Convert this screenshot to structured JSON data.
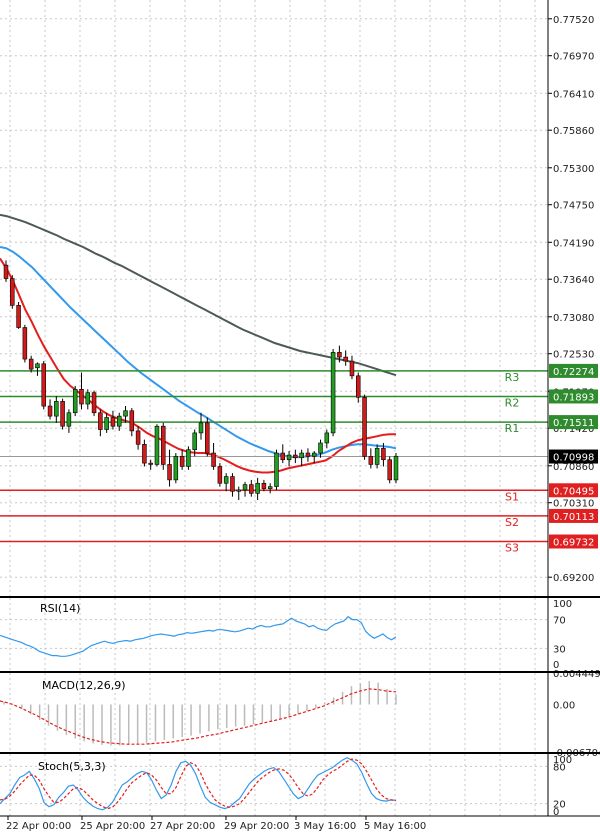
{
  "chart_data": {
    "type": "candlestick",
    "price_panel": {
      "ylim": [
        0.6892,
        0.778
      ],
      "y_ticks": [
        "0.77520",
        "0.76970",
        "0.76410",
        "0.75860",
        "0.75300",
        "0.74750",
        "0.74190",
        "0.73640",
        "0.73080",
        "0.72530",
        "0.71970",
        "0.71420",
        "0.70860",
        "0.70310",
        "0.69200"
      ],
      "current_price": "0.70998",
      "levels": [
        {
          "name": "R3",
          "value": 0.72274,
          "label": "0.72274",
          "color": "#2e8b2e"
        },
        {
          "name": "R2",
          "value": 0.71893,
          "label": "0.71893",
          "color": "#2e8b2e"
        },
        {
          "name": "R1",
          "value": 0.71511,
          "label": "0.71511",
          "color": "#2e8b2e"
        },
        {
          "name": "S1",
          "value": 0.70495,
          "label": "0.70495",
          "color": "#e02020"
        },
        {
          "name": "S2",
          "value": 0.70113,
          "label": "0.70113",
          "color": "#e02020"
        },
        {
          "name": "S3",
          "value": 0.69732,
          "label": "0.69732",
          "color": "#e02020"
        }
      ],
      "candles": [
        [
          0.7385,
          0.7392,
          0.736,
          0.7365
        ],
        [
          0.7365,
          0.737,
          0.732,
          0.7325
        ],
        [
          0.7325,
          0.733,
          0.729,
          0.7292
        ],
        [
          0.7292,
          0.7296,
          0.724,
          0.7245
        ],
        [
          0.7245,
          0.725,
          0.7225,
          0.723
        ],
        [
          0.7232,
          0.724,
          0.722,
          0.7238
        ],
        [
          0.7238,
          0.7242,
          0.717,
          0.7175
        ],
        [
          0.7175,
          0.7185,
          0.7155,
          0.716
        ],
        [
          0.716,
          0.719,
          0.715,
          0.7182
        ],
        [
          0.7182,
          0.7186,
          0.714,
          0.7145
        ],
        [
          0.7145,
          0.717,
          0.7135,
          0.7165
        ],
        [
          0.7165,
          0.7205,
          0.716,
          0.72
        ],
        [
          0.72,
          0.7225,
          0.717,
          0.7178
        ],
        [
          0.7178,
          0.72,
          0.717,
          0.7195
        ],
        [
          0.7195,
          0.7198,
          0.716,
          0.7165
        ],
        [
          0.7165,
          0.717,
          0.713,
          0.714
        ],
        [
          0.714,
          0.7165,
          0.7135,
          0.7158
        ],
        [
          0.7158,
          0.7168,
          0.714,
          0.7145
        ],
        [
          0.7145,
          0.7165,
          0.7138,
          0.716
        ],
        [
          0.716,
          0.7175,
          0.715,
          0.7168
        ],
        [
          0.7168,
          0.7172,
          0.713,
          0.7138
        ],
        [
          0.7138,
          0.7145,
          0.711,
          0.7118
        ],
        [
          0.7118,
          0.7125,
          0.7085,
          0.709
        ],
        [
          0.709,
          0.7095,
          0.708,
          0.7088
        ],
        [
          0.7088,
          0.7148,
          0.7085,
          0.7145
        ],
        [
          0.7145,
          0.715,
          0.708,
          0.7088
        ],
        [
          0.7088,
          0.711,
          0.7055,
          0.7065
        ],
        [
          0.7065,
          0.7105,
          0.706,
          0.71
        ],
        [
          0.71,
          0.711,
          0.708,
          0.7085
        ],
        [
          0.7085,
          0.7115,
          0.708,
          0.711
        ],
        [
          0.711,
          0.714,
          0.71,
          0.7135
        ],
        [
          0.7135,
          0.7165,
          0.7125,
          0.715
        ],
        [
          0.715,
          0.7158,
          0.71,
          0.7105
        ],
        [
          0.7105,
          0.712,
          0.708,
          0.7085
        ],
        [
          0.7085,
          0.709,
          0.7055,
          0.706
        ],
        [
          0.706,
          0.7075,
          0.7048,
          0.707
        ],
        [
          0.707,
          0.7075,
          0.704,
          0.7048
        ],
        [
          0.7048,
          0.7055,
          0.7035,
          0.705
        ],
        [
          0.705,
          0.7062,
          0.704,
          0.7058
        ],
        [
          0.7058,
          0.7065,
          0.704,
          0.7045
        ],
        [
          0.7045,
          0.7068,
          0.7035,
          0.706
        ],
        [
          0.706,
          0.7065,
          0.7048,
          0.7052
        ],
        [
          0.7052,
          0.706,
          0.7045,
          0.7055
        ],
        [
          0.7055,
          0.711,
          0.705,
          0.7105
        ],
        [
          0.7105,
          0.7118,
          0.709,
          0.7095
        ],
        [
          0.7095,
          0.7108,
          0.7085,
          0.7102
        ],
        [
          0.7102,
          0.711,
          0.709,
          0.7098
        ],
        [
          0.7098,
          0.711,
          0.7085,
          0.7105
        ],
        [
          0.7105,
          0.7112,
          0.7092,
          0.71
        ],
        [
          0.71,
          0.7108,
          0.709,
          0.7105
        ],
        [
          0.7105,
          0.7125,
          0.7098,
          0.712
        ],
        [
          0.712,
          0.714,
          0.7112,
          0.7135
        ],
        [
          0.7135,
          0.726,
          0.713,
          0.7255
        ],
        [
          0.7255,
          0.7265,
          0.724,
          0.7248
        ],
        [
          0.7248,
          0.7258,
          0.7235,
          0.7242
        ],
        [
          0.7242,
          0.725,
          0.7215,
          0.722
        ],
        [
          0.722,
          0.7225,
          0.718,
          0.7188
        ],
        [
          0.7188,
          0.7192,
          0.7095,
          0.71
        ],
        [
          0.71,
          0.7112,
          0.7082,
          0.7088
        ],
        [
          0.7088,
          0.7118,
          0.7082,
          0.7112
        ],
        [
          0.7112,
          0.712,
          0.7085,
          0.7095
        ],
        [
          0.7095,
          0.71,
          0.706,
          0.7065
        ],
        [
          0.7065,
          0.7105,
          0.706,
          0.71
        ]
      ],
      "ma_red": [
        0.7395,
        0.738,
        0.7362,
        0.734,
        0.7318,
        0.73,
        0.728,
        0.7262,
        0.7246,
        0.723,
        0.7215,
        0.7205,
        0.7198,
        0.719,
        0.7183,
        0.7175,
        0.7168,
        0.7162,
        0.7158,
        0.7155,
        0.7152,
        0.7148,
        0.7142,
        0.7135,
        0.713,
        0.7126,
        0.7121,
        0.7116,
        0.7111,
        0.7108,
        0.7106,
        0.7105,
        0.7105,
        0.7103,
        0.71,
        0.7096,
        0.7091,
        0.7086,
        0.7082,
        0.7079,
        0.7077,
        0.7076,
        0.7076,
        0.7077,
        0.7079,
        0.7082,
        0.7084,
        0.7086,
        0.7088,
        0.709,
        0.7092,
        0.7094,
        0.71,
        0.7108,
        0.7114,
        0.712,
        0.7124,
        0.7126,
        0.7128,
        0.713,
        0.7132,
        0.7133,
        0.7133
      ],
      "ma_blue": [
        0.7412,
        0.741,
        0.7405,
        0.7398,
        0.739,
        0.7382,
        0.7372,
        0.7362,
        0.7352,
        0.7342,
        0.7332,
        0.7322,
        0.7313,
        0.7304,
        0.7295,
        0.7286,
        0.7277,
        0.7268,
        0.7259,
        0.725,
        0.7241,
        0.7233,
        0.7225,
        0.7218,
        0.7211,
        0.7204,
        0.7197,
        0.719,
        0.7183,
        0.7177,
        0.7171,
        0.7165,
        0.716,
        0.7154,
        0.7148,
        0.7142,
        0.7136,
        0.713,
        0.7125,
        0.712,
        0.7116,
        0.7112,
        0.7108,
        0.7105,
        0.7102,
        0.71,
        0.7099,
        0.7099,
        0.71,
        0.7101,
        0.7103,
        0.7106,
        0.711,
        0.7113,
        0.7115,
        0.7117,
        0.7118,
        0.7118,
        0.7117,
        0.7116,
        0.7115,
        0.7114,
        0.7112
      ],
      "ma_gray": [
        0.746,
        0.7458,
        0.7455,
        0.7452,
        0.7449,
        0.7445,
        0.7441,
        0.7437,
        0.7433,
        0.7429,
        0.7424,
        0.742,
        0.7416,
        0.7412,
        0.7407,
        0.7402,
        0.7398,
        0.7393,
        0.7388,
        0.7384,
        0.7379,
        0.7374,
        0.7369,
        0.7364,
        0.7359,
        0.7354,
        0.7349,
        0.7344,
        0.7339,
        0.7334,
        0.7329,
        0.7324,
        0.7319,
        0.7314,
        0.7309,
        0.7304,
        0.7299,
        0.7294,
        0.7289,
        0.7285,
        0.7281,
        0.7277,
        0.7273,
        0.7269,
        0.7266,
        0.7263,
        0.726,
        0.7257,
        0.7255,
        0.7253,
        0.7251,
        0.7249,
        0.7247,
        0.7245,
        0.7243,
        0.7241,
        0.7239,
        0.7236,
        0.7233,
        0.723,
        0.7227,
        0.7224,
        0.7221
      ]
    },
    "rsi_panel": {
      "title": "RSI(14)",
      "ylim": [
        0,
        100
      ],
      "y_ticks": [
        "100",
        "70",
        "30",
        "0"
      ],
      "guides": [
        70,
        30
      ],
      "values": [
        48,
        46,
        44,
        42,
        40,
        38,
        35,
        33,
        30,
        26,
        24,
        22,
        20,
        20,
        19,
        19,
        20,
        22,
        24,
        26,
        30,
        34,
        36,
        38,
        40,
        38,
        37,
        39,
        40,
        41,
        40,
        42,
        43,
        44,
        46,
        48,
        49,
        50,
        49,
        48,
        47,
        49,
        50,
        52,
        51,
        52,
        53,
        54,
        55,
        54,
        56,
        56,
        55,
        54,
        53,
        54,
        56,
        58,
        57,
        60,
        62,
        60,
        60,
        62,
        63,
        64,
        68,
        72,
        68,
        66,
        64,
        60,
        62,
        58,
        56,
        55,
        60,
        64,
        66,
        68,
        74,
        70,
        70,
        66,
        54,
        48,
        44,
        47,
        50,
        45,
        42,
        46
      ]
    },
    "macd_panel": {
      "title": "MACD(12,26,9)",
      "y_ticks": [
        "0.004449",
        "0.00",
        "-0.006704"
      ],
      "ylim": [
        -0.006704,
        0.004449
      ],
      "signal": [
        0.0005,
        0.0002,
        -0.0003,
        -0.0009,
        -0.0015,
        -0.0022,
        -0.0029,
        -0.0035,
        -0.004,
        -0.0045,
        -0.0049,
        -0.0052,
        -0.0054,
        -0.0055,
        -0.0056,
        -0.0056,
        -0.0056,
        -0.0055,
        -0.0054,
        -0.0053,
        -0.0051,
        -0.0049,
        -0.0047,
        -0.0044,
        -0.0042,
        -0.0039,
        -0.0036,
        -0.0033,
        -0.003,
        -0.0027,
        -0.0024,
        -0.0021,
        -0.0018,
        -0.0014,
        -0.001,
        -0.0006,
        -0.0002,
        0.0004,
        0.0009,
        0.0015,
        0.0019,
        0.0022,
        0.0021,
        0.0019,
        0.0018
      ],
      "histogram": [
        0.0004,
        0.0001,
        -0.0006,
        -0.0014,
        -0.0022,
        -0.003,
        -0.0037,
        -0.0043,
        -0.0048,
        -0.0052,
        -0.0055,
        -0.0057,
        -0.0058,
        -0.0058,
        -0.0057,
        -0.0056,
        -0.0054,
        -0.0052,
        -0.005,
        -0.0048,
        -0.0046,
        -0.0044,
        -0.0041,
        -0.0038,
        -0.0035,
        -0.0033,
        -0.0031,
        -0.003,
        -0.0028,
        -0.0026,
        -0.0024,
        -0.0021,
        -0.0017,
        -0.0013,
        -0.0009,
        -0.0005,
        0.0003,
        0.001,
        0.0018,
        0.0026,
        0.003,
        0.0033,
        0.0031,
        0.0022,
        0.0014
      ]
    },
    "stoch_panel": {
      "title": "Stoch(5,3,3)",
      "ylim": [
        0,
        100
      ],
      "y_ticks": [
        "100",
        "80",
        "20",
        "0"
      ],
      "guides": [
        80,
        20
      ],
      "k": [
        20,
        28,
        36,
        50,
        62,
        66,
        72,
        60,
        45,
        22,
        15,
        18,
        30,
        38,
        48,
        50,
        42,
        30,
        22,
        16,
        12,
        10,
        14,
        22,
        36,
        50,
        55,
        62,
        68,
        72,
        70,
        58,
        42,
        28,
        34,
        50,
        72,
        86,
        88,
        82,
        68,
        48,
        30,
        22,
        18,
        14,
        12,
        15,
        22,
        28,
        40,
        52,
        60,
        66,
        72,
        76,
        78,
        72,
        60,
        48,
        36,
        28,
        32,
        44,
        56,
        66,
        70,
        74,
        78,
        84,
        90,
        94,
        90,
        84,
        70,
        52,
        36,
        28,
        25,
        24,
        26,
        25
      ],
      "d": [
        26,
        27,
        32,
        40,
        50,
        58,
        66,
        66,
        58,
        44,
        32,
        22,
        22,
        28,
        36,
        44,
        46,
        42,
        34,
        26,
        20,
        15,
        12,
        14,
        22,
        32,
        44,
        54,
        60,
        66,
        70,
        66,
        58,
        46,
        36,
        36,
        46,
        64,
        80,
        86,
        82,
        70,
        52,
        38,
        26,
        20,
        16,
        14,
        16,
        20,
        28,
        38,
        48,
        58,
        64,
        70,
        74,
        76,
        74,
        68,
        58,
        46,
        36,
        32,
        36,
        46,
        58,
        66,
        72,
        76,
        82,
        88,
        92,
        90,
        84,
        72,
        58,
        44,
        34,
        28,
        26,
        25
      ]
    },
    "x_tick_labels": [
      "22 Apr 00:00",
      "25 Apr 20:00",
      "27 Apr 20:00",
      "29 Apr 20:00",
      "3 May 16:00",
      "5 May 16:00"
    ]
  },
  "colors": {
    "bull": "#1f9e1f",
    "bear": "#d11a1a",
    "ma_red": "#e51d1d",
    "ma_blue": "#3399ee",
    "ma_gray": "#4d5a55",
    "support": "#e02020",
    "resistance": "#2e8b2e",
    "grid": "#c8c8c8",
    "axis_text": "#222222",
    "indicator_line": "#3399ee",
    "macd_signal": "#e51d1d",
    "macd_hist": "#bbbbbb",
    "stoch_k": "#3399ee",
    "stoch_d": "#e51d1d"
  }
}
